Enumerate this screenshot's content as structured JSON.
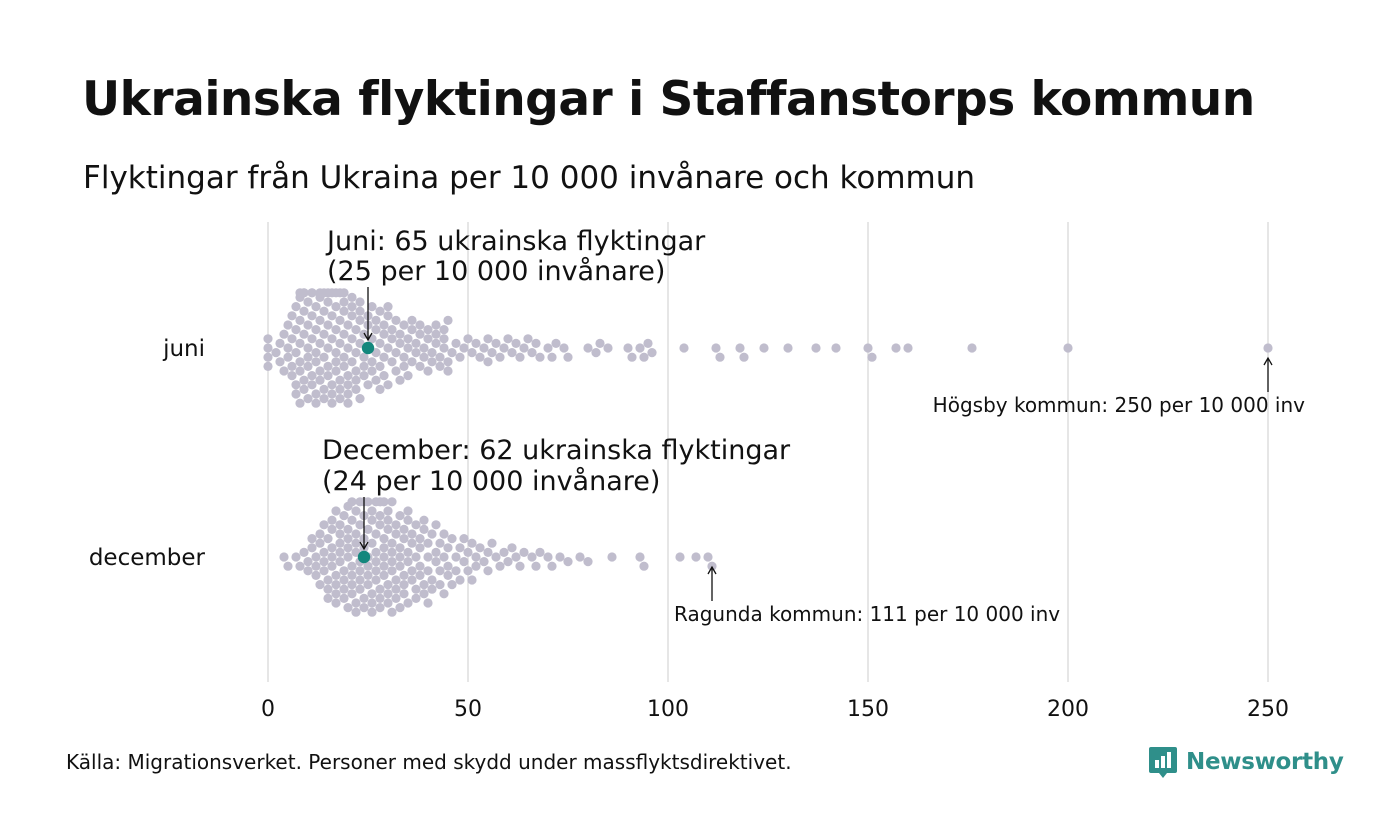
{
  "header": {
    "title": "Ukrainska flyktingar i Staffanstorps kommun",
    "subtitle": "Flyktingar från Ukraina per 10 000 invånare och kommun"
  },
  "footer": {
    "source": "Källa: Migrationsverket. Personer med skydd under massflyktsdirektivet.",
    "brand": "Newsworthy"
  },
  "colors": {
    "dot": "#c0bdcd",
    "highlight": "#14877d",
    "grid": "#d6d6d6",
    "brand": "#2f8f8a"
  },
  "chart_data": {
    "type": "scatter",
    "subtype": "beeswarm",
    "title": "Ukrainska flyktingar i Staffanstorps kommun",
    "subtitle": "Flyktingar från Ukraina per 10 000 invånare och kommun",
    "xlim": [
      0,
      250
    ],
    "x_ticks": [
      "0",
      "50",
      "100",
      "150",
      "200",
      "250"
    ],
    "grid": "vertical",
    "categories": [
      "juni",
      "december"
    ],
    "series": [
      {
        "name": "juni",
        "values": [
          0,
          0,
          0,
          0,
          2,
          3,
          3,
          4,
          4,
          5,
          5,
          5,
          6,
          6,
          6,
          6,
          7,
          7,
          7,
          7,
          7,
          8,
          8,
          8,
          8,
          8,
          8,
          8,
          9,
          9,
          9,
          9,
          9,
          9,
          10,
          10,
          10,
          10,
          10,
          10,
          11,
          11,
          11,
          11,
          11,
          11,
          12,
          12,
          12,
          12,
          12,
          12,
          13,
          13,
          13,
          13,
          13,
          13,
          14,
          14,
          14,
          14,
          14,
          14,
          15,
          15,
          15,
          15,
          15,
          15,
          16,
          16,
          16,
          16,
          16,
          16,
          17,
          17,
          17,
          17,
          17,
          17,
          18,
          18,
          18,
          18,
          18,
          18,
          19,
          19,
          19,
          19,
          19,
          19,
          20,
          20,
          20,
          20,
          20,
          20,
          21,
          21,
          21,
          21,
          21,
          22,
          22,
          22,
          22,
          22,
          23,
          23,
          23,
          23,
          23,
          24,
          24,
          24,
          24,
          25,
          25,
          25,
          25,
          26,
          26,
          26,
          26,
          27,
          27,
          27,
          27,
          28,
          28,
          28,
          28,
          29,
          29,
          29,
          29,
          30,
          30,
          30,
          30,
          31,
          31,
          31,
          32,
          32,
          32,
          33,
          33,
          33,
          34,
          34,
          34,
          35,
          35,
          35,
          36,
          36,
          36,
          37,
          37,
          38,
          38,
          38,
          39,
          39,
          40,
          40,
          40,
          41,
          41,
          42,
          42,
          42,
          43,
          43,
          44,
          44,
          44,
          45,
          45,
          45,
          46,
          47,
          48,
          49,
          50,
          51,
          52,
          53,
          54,
          55,
          55,
          56,
          57,
          58,
          59,
          60,
          61,
          62,
          63,
          64,
          65,
          66,
          67,
          68,
          70,
          71,
          72,
          74,
          75,
          80,
          82,
          83,
          85,
          90,
          91,
          93,
          94,
          95,
          96,
          104,
          112,
          113,
          118,
          119,
          124,
          130,
          137,
          142,
          150,
          151,
          157,
          160,
          176,
          200,
          250
        ]
      },
      {
        "name": "december",
        "values": [
          4,
          5,
          7,
          8,
          9,
          10,
          10,
          11,
          11,
          12,
          12,
          12,
          13,
          13,
          13,
          14,
          14,
          14,
          14,
          15,
          15,
          15,
          15,
          16,
          16,
          16,
          16,
          16,
          17,
          17,
          17,
          17,
          17,
          18,
          18,
          18,
          18,
          18,
          19,
          19,
          19,
          19,
          19,
          20,
          20,
          20,
          20,
          20,
          20,
          21,
          21,
          21,
          21,
          21,
          21,
          22,
          22,
          22,
          22,
          22,
          22,
          23,
          23,
          23,
          23,
          23,
          23,
          24,
          24,
          24,
          24,
          24,
          24,
          25,
          25,
          25,
          25,
          25,
          25,
          26,
          26,
          26,
          26,
          26,
          26,
          27,
          27,
          27,
          27,
          27,
          27,
          28,
          28,
          28,
          28,
          28,
          28,
          29,
          29,
          29,
          29,
          29,
          29,
          30,
          30,
          30,
          30,
          30,
          30,
          31,
          31,
          31,
          31,
          31,
          31,
          32,
          32,
          32,
          32,
          32,
          33,
          33,
          33,
          33,
          33,
          34,
          34,
          34,
          34,
          34,
          35,
          35,
          35,
          35,
          35,
          36,
          36,
          36,
          36,
          37,
          37,
          37,
          37,
          38,
          38,
          38,
          38,
          39,
          39,
          39,
          39,
          40,
          40,
          40,
          40,
          41,
          41,
          41,
          42,
          42,
          42,
          43,
          43,
          43,
          44,
          44,
          44,
          45,
          45,
          45,
          46,
          46,
          47,
          47,
          48,
          48,
          49,
          49,
          50,
          50,
          51,
          51,
          52,
          52,
          53,
          54,
          55,
          55,
          56,
          57,
          58,
          59,
          60,
          61,
          62,
          63,
          64,
          66,
          67,
          68,
          70,
          71,
          73,
          75,
          78,
          80,
          86,
          93,
          94,
          103,
          107,
          110,
          111
        ]
      }
    ],
    "highlight": [
      {
        "category": "juni",
        "x": 25,
        "label_line1": "Juni: 65 ukrainska flyktingar",
        "label_line2": "(25 per 10 000 invånare)"
      },
      {
        "category": "december",
        "x": 24,
        "label_line1": "December: 62 ukrainska flyktingar",
        "label_line2": "(24 per 10 000 invånare)"
      }
    ],
    "annotations": [
      {
        "category": "juni",
        "x": 250,
        "text": "Högsby kommun: 250 per 10 000 inv"
      },
      {
        "category": "december",
        "x": 111,
        "text": "Ragunda kommun: 111 per 10 000 inv"
      }
    ]
  }
}
